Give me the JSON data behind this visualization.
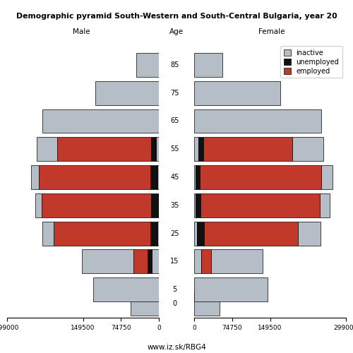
{
  "title": "Demographic pyramid South-Western and South-Central Bulgaria, year 20",
  "age_groups": [
    0,
    5,
    15,
    25,
    35,
    45,
    55,
    65,
    75,
    85
  ],
  "age_labels": [
    "0",
    "5",
    "15",
    "25",
    "35",
    "45",
    "55",
    "65",
    "75",
    "85"
  ],
  "male": {
    "inactive": [
      55000,
      130000,
      115000,
      25000,
      15000,
      18000,
      45000,
      230000,
      125000,
      45000
    ],
    "unemployed": [
      0,
      0,
      8000,
      14000,
      14000,
      14000,
      10000,
      0,
      0,
      0
    ],
    "employed": [
      0,
      0,
      28000,
      190000,
      215000,
      220000,
      185000,
      0,
      0,
      0
    ]
  },
  "female": {
    "inactive": [
      50000,
      145000,
      115000,
      50000,
      22000,
      25000,
      70000,
      250000,
      170000,
      55000
    ],
    "unemployed": [
      0,
      0,
      0,
      14000,
      10000,
      8000,
      10000,
      0,
      0,
      0
    ],
    "employed": [
      0,
      0,
      20000,
      185000,
      235000,
      240000,
      175000,
      0,
      0,
      0
    ]
  },
  "xlim": 299000,
  "bar_height": 8.5,
  "colors": {
    "inactive": "#b5bec6",
    "unemployed": "#111111",
    "employed": "#c0392b"
  },
  "footer": "www.iz.sk/RBG4",
  "xlabel_left": "Male",
  "xlabel_right": "Female",
  "xlabel_center": "Age"
}
